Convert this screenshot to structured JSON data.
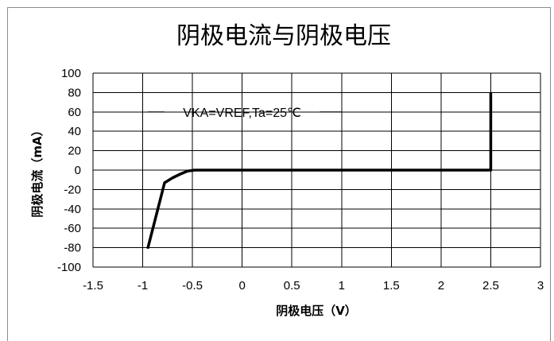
{
  "chart_data": {
    "type": "line",
    "title": "阴极电流与阴极电压",
    "xlabel": "阴极电压（V）",
    "ylabel": "阴极电流（mA）",
    "xlim": [
      -1.5,
      3
    ],
    "ylim": [
      -100,
      100
    ],
    "x_ticks": [
      "-1.5",
      "-1",
      "-0.5",
      "0",
      "0.5",
      "1",
      "1.5",
      "2",
      "2.5",
      "3"
    ],
    "y_ticks": [
      "100",
      "80",
      "60",
      "40",
      "20",
      "0",
      "-20",
      "-40",
      "-60",
      "-80",
      "-100"
    ],
    "grid": true,
    "annotation": "VKA=VREF,Ta=25℃",
    "series": [
      {
        "color": "#000000",
        "x": [
          -0.95,
          -0.78,
          -0.7,
          -0.62,
          -0.55,
          -0.48,
          -0.3,
          0.0,
          1.0,
          2.0,
          2.49,
          2.5,
          2.5
        ],
        "y": [
          -81,
          -13,
          -8,
          -4,
          -1,
          0,
          0,
          0,
          0,
          0,
          0,
          0,
          80
        ]
      }
    ]
  }
}
